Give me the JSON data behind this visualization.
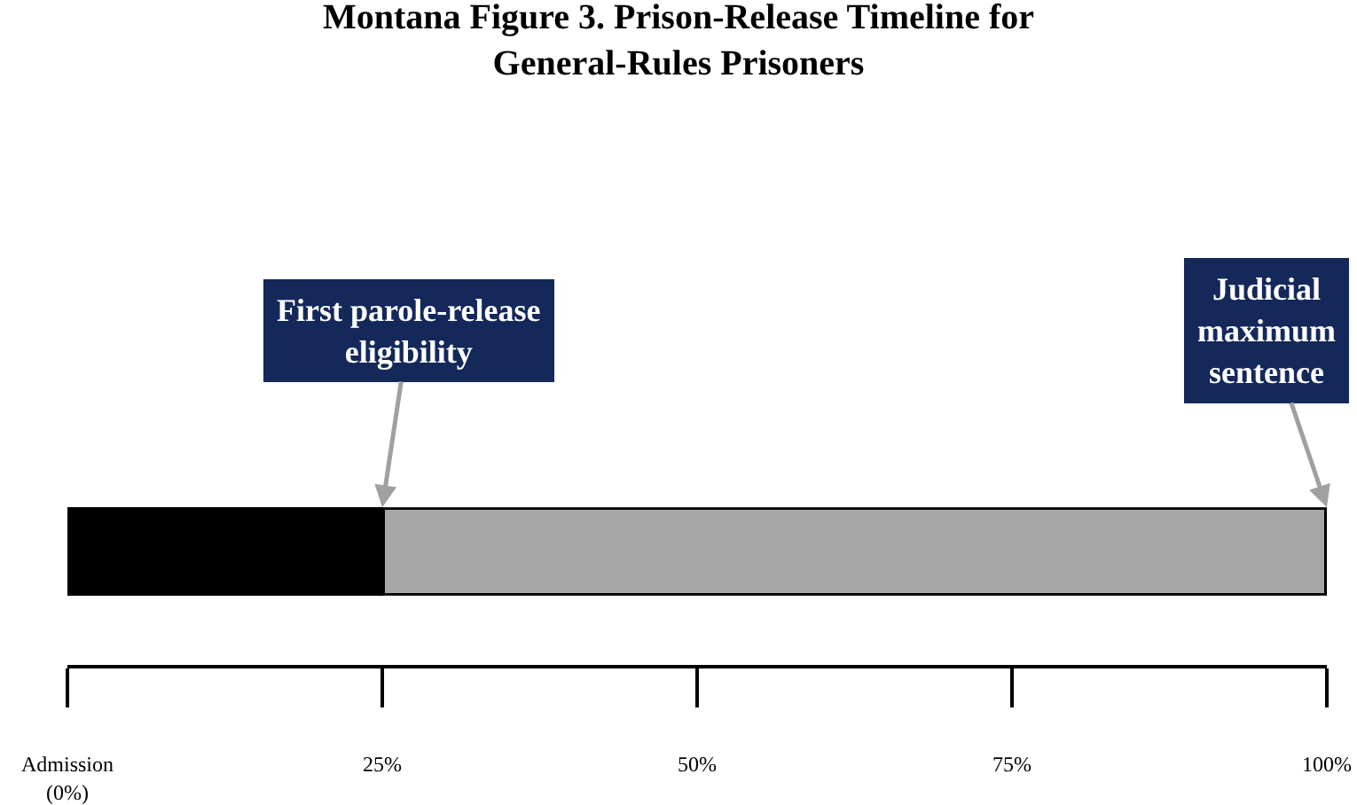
{
  "chart_data": {
    "type": "bar",
    "orientation": "horizontal",
    "stacked": true,
    "title": "Montana Figure 3. Prison-Release Timeline for\nGeneral-Rules Prisoners",
    "categories": [
      null
    ],
    "series": [
      {
        "color": "#000000",
        "values": [
          25
        ]
      },
      {
        "color": "#a6a6a6",
        "values": [
          75
        ]
      }
    ],
    "xlim": [
      0,
      100
    ],
    "xticks": [
      {
        "value": 0,
        "label": "Admission\n(0%)"
      },
      {
        "value": 25,
        "label": "25%"
      },
      {
        "value": 50,
        "label": "50%"
      },
      {
        "value": 75,
        "label": "75%"
      },
      {
        "value": 100,
        "label": "100%"
      }
    ],
    "tick_labels": "x",
    "annotations": [
      "First parole-release\neligibility",
      "Judicial\nmaximum\nsentence"
    ]
  }
}
